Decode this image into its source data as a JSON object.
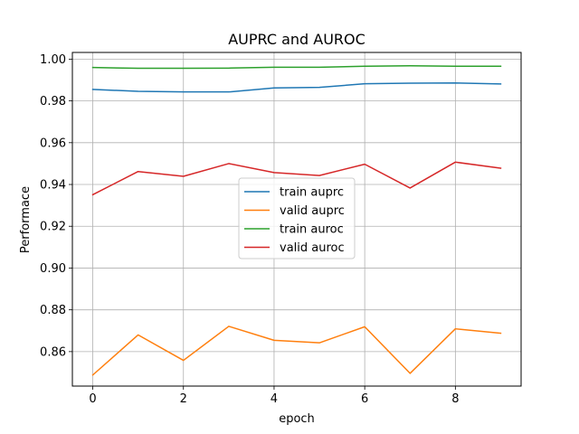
{
  "chart_data": {
    "type": "line",
    "title": "AUPRC and AUROC",
    "xlabel": "epoch",
    "ylabel": "Performace",
    "xlim": [
      -0.45,
      9.45
    ],
    "ylim": [
      0.8435,
      1.0032
    ],
    "grid": true,
    "legend_position": "center",
    "x": [
      0,
      1,
      2,
      3,
      4,
      5,
      6,
      7,
      8,
      9
    ],
    "x_ticks": [
      0,
      2,
      4,
      6,
      8
    ],
    "x_tick_labels": [
      "0",
      "2",
      "4",
      "6",
      "8"
    ],
    "y_ticks": [
      0.86,
      0.88,
      0.9,
      0.92,
      0.94,
      0.96,
      0.98,
      1.0
    ],
    "y_tick_labels": [
      "0.86",
      "0.88",
      "0.90",
      "0.92",
      "0.94",
      "0.96",
      "0.98",
      "1.00"
    ],
    "series": [
      {
        "name": "train auprc",
        "color": "#1f77b4",
        "values": [
          0.9855,
          0.9846,
          0.9843,
          0.9843,
          0.9862,
          0.9865,
          0.9882,
          0.9885,
          0.9886,
          0.9881
        ]
      },
      {
        "name": "valid auprc",
        "color": "#ff7f0e",
        "values": [
          0.8488,
          0.868,
          0.8558,
          0.8721,
          0.8654,
          0.8642,
          0.8719,
          0.8496,
          0.8709,
          0.8688
        ]
      },
      {
        "name": "train auroc",
        "color": "#2ca02c",
        "values": [
          0.996,
          0.9956,
          0.9956,
          0.9957,
          0.9961,
          0.9961,
          0.9966,
          0.9968,
          0.9966,
          0.9966
        ]
      },
      {
        "name": "valid auroc",
        "color": "#d62728",
        "values": [
          0.9351,
          0.9462,
          0.9439,
          0.95,
          0.9457,
          0.9443,
          0.9497,
          0.9383,
          0.9507,
          0.9478
        ]
      }
    ]
  }
}
